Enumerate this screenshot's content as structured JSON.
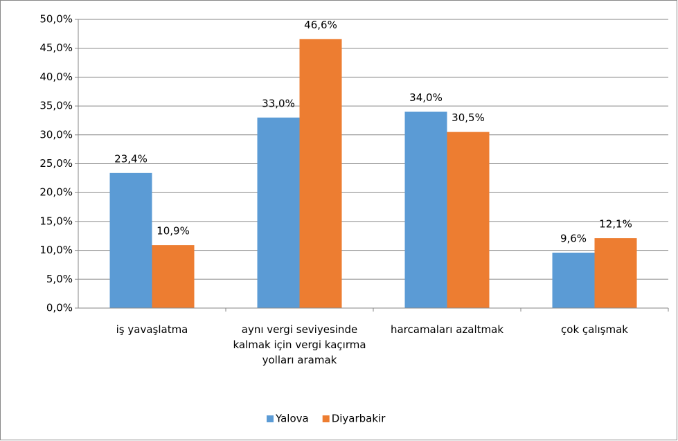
{
  "chart_data": {
    "type": "bar",
    "categories": [
      "iş yavaşlatma",
      "aynı vergi seviyesinde kalmak için vergi kaçırma yolları aramak",
      "harcamaları azaltmak",
      "çok çalışmak"
    ],
    "series": [
      {
        "name": "Yalova",
        "color": "#5b9bd5",
        "values": [
          23.4,
          33.0,
          34.0,
          9.6
        ],
        "value_labels": [
          "23,4%",
          "33,0%",
          "34,0%",
          "9,6%"
        ]
      },
      {
        "name": "Diyarbakir",
        "color": "#ed7d31",
        "values": [
          10.9,
          46.6,
          30.5,
          12.1
        ],
        "value_labels": [
          "10,9%",
          "46,6%",
          "30,5%",
          "12,1%"
        ]
      }
    ],
    "ylim": [
      0,
      50
    ],
    "yticks": [
      {
        "value": 0,
        "label": "0,0%"
      },
      {
        "value": 5,
        "label": "5,0%"
      },
      {
        "value": 10,
        "label": "10,0%"
      },
      {
        "value": 15,
        "label": "15,0%"
      },
      {
        "value": 20,
        "label": "20,0%"
      },
      {
        "value": 25,
        "label": "25,0%"
      },
      {
        "value": 30,
        "label": "30,0%"
      },
      {
        "value": 35,
        "label": "35,0%"
      },
      {
        "value": 40,
        "label": "40,0%"
      },
      {
        "value": 45,
        "label": "45,0%"
      },
      {
        "value": 50,
        "label": "50,0%"
      }
    ],
    "grid": true,
    "legend": "bottom"
  }
}
